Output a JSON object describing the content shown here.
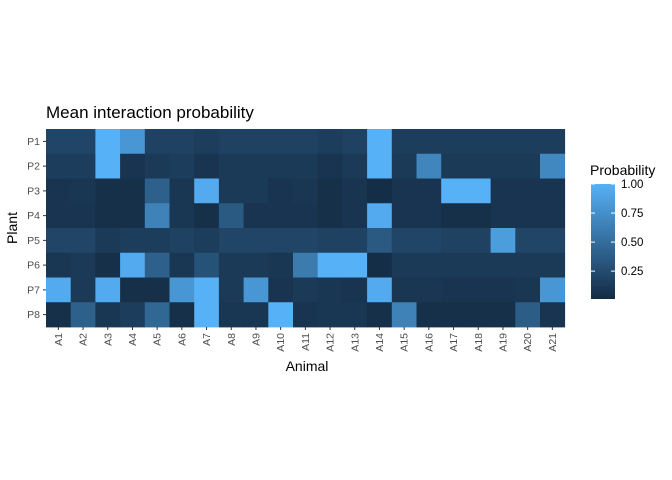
{
  "chart_data": {
    "type": "heatmap",
    "title": "Mean interaction probability",
    "xlabel": "Animal",
    "ylabel": "Plant",
    "x_categories": [
      "A1",
      "A2",
      "A3",
      "A4",
      "A5",
      "A6",
      "A7",
      "A8",
      "A9",
      "A10",
      "A11",
      "A12",
      "A13",
      "A14",
      "A15",
      "A16",
      "A17",
      "A18",
      "A19",
      "A20",
      "A21"
    ],
    "y_categories": [
      "P1",
      "P2",
      "P3",
      "P4",
      "P5",
      "P6",
      "P7",
      "P8"
    ],
    "values": [
      [
        0.2,
        0.2,
        1.0,
        0.8,
        0.18,
        0.18,
        0.15,
        0.18,
        0.18,
        0.18,
        0.18,
        0.15,
        0.18,
        1.0,
        0.15,
        0.15,
        0.15,
        0.15,
        0.15,
        0.15,
        0.15
      ],
      [
        0.15,
        0.15,
        1.0,
        0.08,
        0.12,
        0.15,
        0.08,
        0.12,
        0.12,
        0.12,
        0.12,
        0.08,
        0.12,
        1.0,
        0.12,
        0.68,
        0.12,
        0.12,
        0.12,
        0.12,
        0.7
      ],
      [
        0.08,
        0.1,
        0.05,
        0.05,
        0.4,
        0.1,
        0.95,
        0.12,
        0.12,
        0.08,
        0.1,
        0.05,
        0.08,
        0.03,
        0.08,
        0.08,
        1.0,
        1.0,
        0.08,
        0.08,
        0.08
      ],
      [
        0.08,
        0.08,
        0.05,
        0.05,
        0.65,
        0.1,
        0.05,
        0.35,
        0.08,
        0.08,
        0.08,
        0.05,
        0.08,
        0.95,
        0.08,
        0.08,
        0.05,
        0.05,
        0.08,
        0.08,
        0.08
      ],
      [
        0.2,
        0.2,
        0.12,
        0.15,
        0.15,
        0.18,
        0.15,
        0.2,
        0.2,
        0.2,
        0.2,
        0.18,
        0.18,
        0.35,
        0.2,
        0.2,
        0.18,
        0.18,
        0.85,
        0.2,
        0.2
      ],
      [
        0.1,
        0.12,
        0.05,
        0.95,
        0.4,
        0.1,
        0.3,
        0.12,
        0.12,
        0.1,
        0.6,
        1.0,
        1.0,
        0.03,
        0.12,
        0.12,
        0.12,
        0.12,
        0.12,
        0.12,
        0.12
      ],
      [
        0.95,
        0.12,
        0.95,
        0.05,
        0.05,
        0.8,
        1.0,
        0.12,
        0.8,
        0.08,
        0.12,
        0.1,
        0.08,
        0.95,
        0.1,
        0.1,
        0.08,
        0.08,
        0.08,
        0.1,
        0.8
      ],
      [
        0.05,
        0.4,
        0.1,
        0.15,
        0.45,
        0.05,
        1.0,
        0.1,
        0.1,
        1.0,
        0.08,
        0.1,
        0.1,
        0.05,
        0.65,
        0.05,
        0.05,
        0.05,
        0.05,
        0.38,
        0.08
      ]
    ],
    "legend": {
      "title": "Probability",
      "breaks": [
        0.25,
        0.5,
        0.75,
        1.0
      ],
      "break_labels": [
        "0.25",
        "0.50",
        "0.75",
        "1.00"
      ],
      "placement": "right",
      "low_color": "#132b43",
      "high_color": "#56b1f7",
      "range": [
        0.01,
        1.0
      ]
    },
    "panel_background": "#ebebeb",
    "grid": false
  }
}
